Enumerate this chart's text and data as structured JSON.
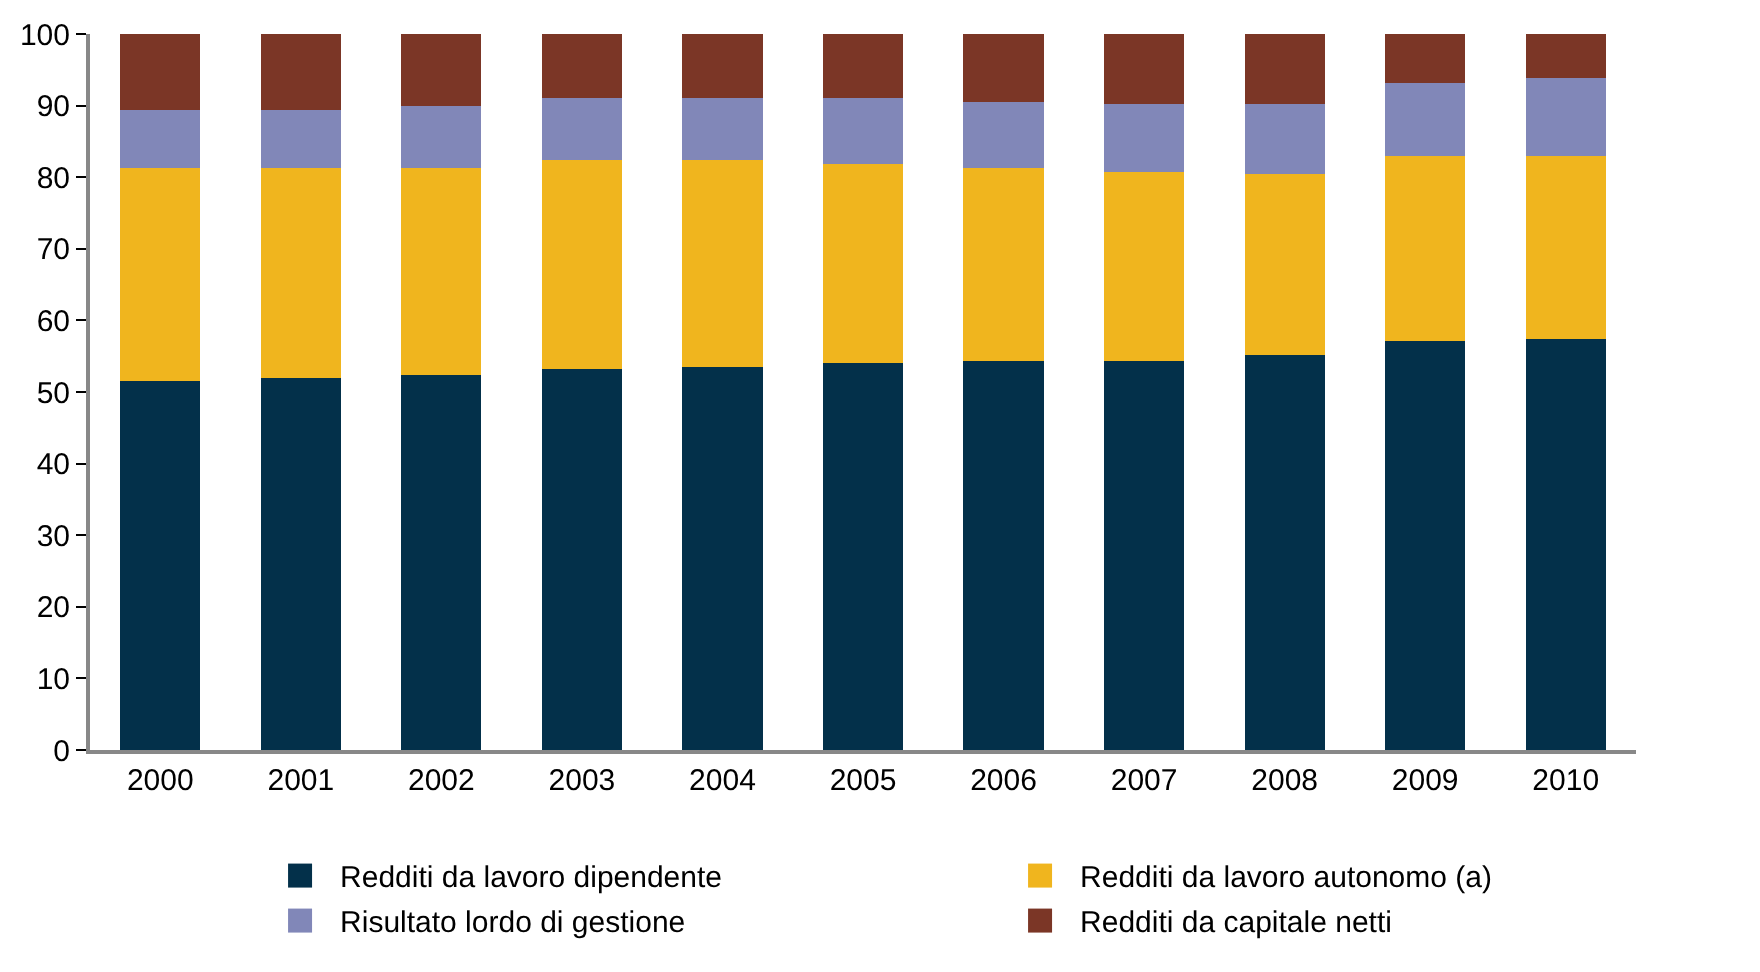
{
  "chart_data": {
    "type": "bar",
    "stacked": true,
    "categories": [
      "2000",
      "2001",
      "2002",
      "2003",
      "2004",
      "2005",
      "2006",
      "2007",
      "2008",
      "2009",
      "2010"
    ],
    "series": [
      {
        "name": "Redditi da lavoro dipendente",
        "color": "#03304a",
        "values": [
          51.6,
          51.9,
          52.4,
          53.2,
          53.5,
          54.1,
          54.4,
          54.4,
          55.2,
          57.1,
          57.4
        ]
      },
      {
        "name": "Redditi da lavoro autonomo (a)",
        "color": "#f0b51e",
        "values": [
          29.7,
          29.4,
          28.9,
          29.2,
          28.9,
          27.8,
          26.9,
          26.3,
          25.3,
          25.9,
          25.6
        ]
      },
      {
        "name": "Risultato lordo di gestione",
        "color": "#8187b8",
        "values": [
          8.1,
          8.1,
          8.6,
          8.6,
          8.6,
          9.1,
          9.2,
          9.5,
          9.7,
          10.2,
          10.8
        ]
      },
      {
        "name": "Redditi da capitale netti",
        "color": "#7b3626",
        "values": [
          10.6,
          10.6,
          10.1,
          9.0,
          9.0,
          9.0,
          9.5,
          9.8,
          9.8,
          6.8,
          6.2
        ]
      }
    ],
    "ylim": [
      0,
      100
    ],
    "yticks": [
      0,
      10,
      20,
      30,
      40,
      50,
      60,
      70,
      80,
      90,
      100
    ],
    "grid": false,
    "legend": "bottom"
  }
}
